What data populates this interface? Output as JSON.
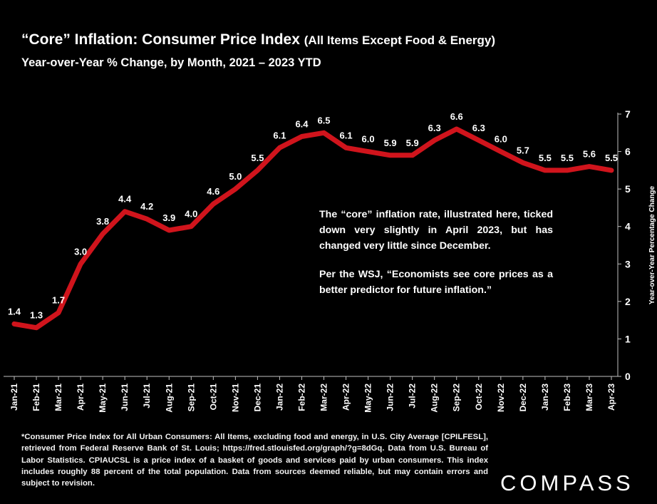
{
  "header": {
    "title_main": "“Core” Inflation: Consumer Price Index",
    "title_paren": "(All Items Except Food & Energy)",
    "subtitle": "Year-over-Year % Change, by Month, 2021 – 2023 YTD"
  },
  "annotation": {
    "para1": "The “core” inflation rate, illustrated here, ticked down very slightly in April 2023, but has changed very little since December.",
    "para2": "Per the WSJ, “Economists see core prices as a better predictor for future inflation.”"
  },
  "footnote": "*Consumer Price Index for All Urban Consumers: All Items, excluding food and energy, in U.S. City Average [CPILFESL], retrieved from Federal Reserve Bank of St. Louis; https://fred.stlouisfed.org/graph/?g=8dGq. Data from U.S. Bureau of Labor Statistics. CPIAUCSL is a price index of a basket of goods and services paid by urban consumers. This index includes roughly 88 percent of the total population. Data from sources deemed reliable, but may contain errors and subject to revision.",
  "logo": "COMPASS",
  "colors": {
    "line": "#d0141c",
    "background": "#000000",
    "text": "#ffffff",
    "axis": "#bfbfbf"
  },
  "chart_data": {
    "type": "line",
    "categories": [
      "Jan-21",
      "Feb-21",
      "Mar-21",
      "Apr-21",
      "May-21",
      "Jun-21",
      "Jul-21",
      "Aug-21",
      "Sep-21",
      "Oct-21",
      "Nov-21",
      "Dec-21",
      "Jan-22",
      "Feb-22",
      "Mar-22",
      "Apr-22",
      "May-22",
      "Jun-22",
      "Jul-22",
      "Aug-22",
      "Sep-22",
      "Oct-22",
      "Nov-22",
      "Dec-22",
      "Jan-23",
      "Feb-23",
      "Mar-23",
      "Apr-23"
    ],
    "series": [
      {
        "name": "Core CPI YoY % Change",
        "values": [
          1.4,
          1.3,
          1.7,
          3.0,
          3.8,
          4.4,
          4.2,
          3.9,
          4.0,
          4.6,
          5.0,
          5.5,
          6.1,
          6.4,
          6.5,
          6.1,
          6.0,
          5.9,
          5.9,
          6.3,
          6.6,
          6.3,
          6.0,
          5.7,
          5.5,
          5.5,
          5.6,
          5.5
        ],
        "labels": [
          "1.4",
          "1.3",
          "1.7",
          "3.0",
          "3.8",
          "4.4",
          "4.2",
          "3.9",
          "4.0",
          "4.6",
          "5.0",
          "5.5",
          "6.1",
          "6.4",
          "6.5",
          "6.1",
          "6.0",
          "5.9",
          "5.9",
          "6.3",
          "6.6",
          "6.3",
          "6.0",
          "5.7",
          "5.5",
          "5.5",
          "5.6",
          "5.5"
        ]
      }
    ],
    "ylabel": "Year-over-Year Percentage Change",
    "ylim": [
      0,
      7
    ],
    "yticks": [
      "0",
      "1",
      "2",
      "3",
      "4",
      "5",
      "6",
      "7"
    ],
    "legend": "none"
  }
}
